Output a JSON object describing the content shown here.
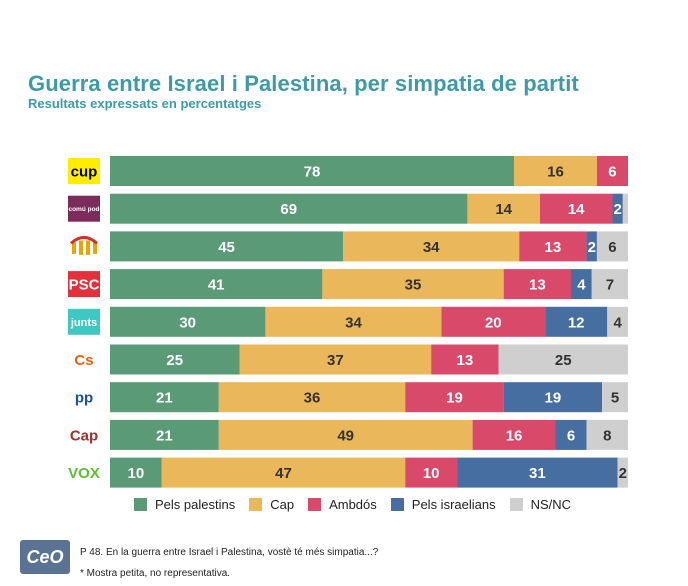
{
  "chart_data": {
    "type": "stacked-bar-horizontal",
    "title": "Guerra entre Israel i Palestina, per simpatia de partit",
    "subtitle": "Resultats expressats en percentatges",
    "xlim": [
      0,
      100
    ],
    "categories": [
      "CUP",
      "Comuns",
      "ERC",
      "PSC",
      "Junts",
      "Cs",
      "PP",
      "Cap",
      "VOX"
    ],
    "category_logos": [
      {
        "text": "cup",
        "bg": "#ffed00",
        "fg": "#000000"
      },
      {
        "text": "en comú podem",
        "bg": "#7b2c5b",
        "fg": "#ffffff"
      },
      {
        "text": "",
        "bg": "#ffffff",
        "fg": "#f0b000"
      },
      {
        "text": "PSC",
        "bg": "#e3313b",
        "fg": "#ffffff"
      },
      {
        "text": "junts",
        "bg": "#3fc7c2",
        "fg": "#ffffff"
      },
      {
        "text": "Cs",
        "bg": "#ffffff",
        "fg": "#eb6109"
      },
      {
        "text": "pp",
        "bg": "#ffffff",
        "fg": "#1d4fa0"
      },
      {
        "text": "Cap",
        "bg": "#ffffff",
        "fg": "#a0322a"
      },
      {
        "text": "VOX",
        "bg": "#ffffff",
        "fg": "#5ac035"
      }
    ],
    "series": [
      {
        "name": "Pels palestins",
        "color": "#5a9a77",
        "values": [
          78,
          69,
          45,
          41,
          30,
          25,
          21,
          21,
          10
        ]
      },
      {
        "name": "Cap",
        "color": "#eab75a",
        "values": [
          16,
          14,
          34,
          35,
          34,
          37,
          36,
          49,
          47
        ]
      },
      {
        "name": "Ambdós",
        "color": "#d9496a",
        "values": [
          6,
          14,
          13,
          13,
          20,
          13,
          19,
          16,
          10
        ]
      },
      {
        "name": "Pels israelians",
        "color": "#466ea1",
        "values": [
          0,
          2,
          2,
          4,
          12,
          0,
          19,
          6,
          31
        ]
      },
      {
        "name": "NS/NC",
        "color": "#cfcfcf",
        "values": [
          0,
          1,
          6,
          7,
          4,
          25,
          5,
          8,
          2
        ]
      }
    ],
    "labels": [
      [
        "78",
        "16",
        "6",
        "",
        ""
      ],
      [
        "69",
        "14",
        "14",
        "2",
        ""
      ],
      [
        "45",
        "34",
        "13",
        "2",
        "6"
      ],
      [
        "41",
        "35",
        "13",
        "4",
        "7"
      ],
      [
        "30",
        "34",
        "20",
        "12",
        "4"
      ],
      [
        "25",
        "37",
        "13",
        "",
        "25"
      ],
      [
        "21",
        "36",
        "19",
        "19",
        "5"
      ],
      [
        "21",
        "49",
        "16",
        "6",
        "8"
      ],
      [
        "10",
        "47",
        "10",
        "31",
        "2"
      ]
    ]
  },
  "logo": {
    "text": "CeO",
    "color": "#5a7393"
  },
  "footnotes": {
    "question": "P 48. En la guerra entre Israel i Palestina, vostè té més simpatia...?",
    "sample": "* Mostra petita, no representativa."
  }
}
